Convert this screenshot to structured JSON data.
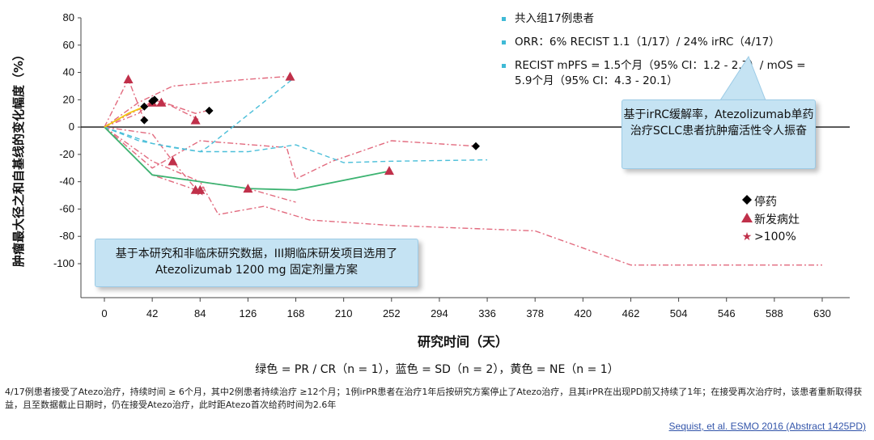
{
  "chart_data": {
    "type": "line",
    "ylabel": "肿瘤最大径之和自基线的变化幅度（%）",
    "xlabel": "研究时间（天）",
    "xlim": [
      0,
      630
    ],
    "ylim": [
      -100,
      80
    ],
    "xticks": [
      0,
      42,
      84,
      126,
      168,
      210,
      252,
      294,
      336,
      378,
      420,
      462,
      504,
      546,
      588,
      630
    ],
    "yticks": [
      80,
      60,
      40,
      20,
      0,
      -20,
      -40,
      -60,
      -80,
      -100
    ],
    "series": [
      {
        "color": "#e26a7e",
        "style": "dashdot",
        "points": [
          [
            0,
            0
          ],
          [
            21,
            35
          ],
          [
            35,
            5
          ]
        ]
      },
      {
        "color": "#e26a7e",
        "style": "dashdot",
        "points": [
          [
            0,
            0
          ],
          [
            30,
            10
          ],
          [
            42,
            20
          ],
          [
            52,
            18
          ],
          [
            80,
            10
          ],
          [
            90,
            12
          ]
        ]
      },
      {
        "color": "#e26a7e",
        "style": "dashdot",
        "points": [
          [
            0,
            0
          ],
          [
            35,
            15
          ],
          [
            55,
            17
          ],
          [
            84,
            5
          ]
        ]
      },
      {
        "color": "#e26a7e",
        "style": "dashdot",
        "points": [
          [
            0,
            0
          ],
          [
            42,
            -5
          ],
          [
            60,
            -25
          ],
          [
            80,
            -45
          ],
          [
            90,
            -44
          ]
        ]
      },
      {
        "color": "#e26a7e",
        "style": "dashdot",
        "points": [
          [
            0,
            0
          ],
          [
            42,
            -35
          ],
          [
            84,
            -47
          ]
        ]
      },
      {
        "color": "#e26a7e",
        "style": "dashdot",
        "points": [
          [
            0,
            0
          ],
          [
            42,
            -30
          ],
          [
            84,
            -10
          ],
          [
            160,
            -15
          ],
          [
            168,
            -38
          ],
          [
            200,
            -25
          ],
          [
            252,
            -10
          ],
          [
            326,
            -14
          ]
        ]
      },
      {
        "color": "#e26a7e",
        "style": "dashdot",
        "points": [
          [
            0,
            0
          ],
          [
            42,
            -35
          ],
          [
            84,
            -40
          ],
          [
            100,
            -64
          ],
          [
            140,
            -58
          ],
          [
            180,
            -68
          ],
          [
            252,
            -72
          ],
          [
            378,
            -76
          ],
          [
            462,
            -101
          ],
          [
            630,
            -101
          ]
        ]
      },
      {
        "color": "#e26a7e",
        "style": "dashdot",
        "points": [
          [
            0,
            0
          ],
          [
            42,
            -25
          ],
          [
            84,
            -40
          ],
          [
            126,
            -45
          ],
          [
            168,
            -55
          ]
        ]
      },
      {
        "color": "#e26a7e",
        "style": "dashdot",
        "points": [
          [
            0,
            0
          ],
          [
            30,
            18
          ],
          [
            60,
            30
          ],
          [
            126,
            35
          ],
          [
            160,
            37
          ]
        ]
      },
      {
        "color": "#4cbfd9",
        "style": "dashed",
        "points": [
          [
            0,
            0
          ],
          [
            30,
            -10
          ],
          [
            60,
            -15
          ],
          [
            84,
            -18
          ],
          [
            90,
            -15
          ],
          [
            165,
            35
          ]
        ]
      },
      {
        "color": "#4cbfd9",
        "style": "dashed",
        "points": [
          [
            0,
            0
          ],
          [
            42,
            -12
          ],
          [
            84,
            -18
          ],
          [
            126,
            -18
          ],
          [
            168,
            -13
          ],
          [
            210,
            -26
          ],
          [
            252,
            -25
          ],
          [
            336,
            -24
          ]
        ]
      },
      {
        "color": "#3cb371",
        "style": "solid",
        "points": [
          [
            0,
            0
          ],
          [
            42,
            -35
          ],
          [
            84,
            -40
          ],
          [
            126,
            -45
          ],
          [
            168,
            -46
          ],
          [
            252,
            -32
          ]
        ]
      },
      {
        "color": "#f2c811",
        "style": "solid",
        "points": [
          [
            0,
            0
          ],
          [
            21,
            10
          ],
          [
            35,
            15
          ]
        ]
      }
    ],
    "markers_diamond": [
      [
        35,
        5
      ],
      [
        35,
        15
      ],
      [
        42,
        19
      ],
      [
        44,
        20
      ],
      [
        92,
        12
      ],
      [
        326,
        -14
      ]
    ],
    "markers_triangle": [
      [
        21,
        35
      ],
      [
        42,
        18
      ],
      [
        50,
        18
      ],
      [
        60,
        -25
      ],
      [
        80,
        5
      ],
      [
        80,
        -46
      ],
      [
        84,
        -46
      ],
      [
        126,
        -45
      ],
      [
        163,
        37
      ],
      [
        250,
        -32
      ]
    ],
    "markers_star": [
      [
        84,
        -47
      ]
    ]
  },
  "legend_top": [
    "共入组17例患者",
    "ORR：6% RECIST 1.1（1/17）/ 24% irRC（4/17）",
    "RECIST mPFS = 1.5个月（95% CI：1.2 - 2.7）/ mOS = 5.9个月（95% CI：4.3 - 20.1）"
  ],
  "callout_right": "基于irRC缓解率，Atezolizumab单药治疗SCLC患者抗肿瘤活性令人振奋",
  "callout_left": "基于本研究和非临床研究数据，III期临床研发项目选用了Atezolizumab 1200 mg 固定剂量方案",
  "legend_markers": {
    "diamond": "停药",
    "triangle": "新发病灶",
    "star": ">100%"
  },
  "color_note": "绿色 = PR / CR（n = 1），蓝色 = SD（n = 2），黄色 = NE（n = 1）",
  "footnote": "4/17例患者接受了Atezo治疗，持续时间 ≥ 6个月，其中2例患者持续治疗 ≥12个月；1例irPR患者在治疗1年后按研究方案停止了Atezo治疗，且其irPR在出现PD前又持续了1年；在接受再次治疗时，该患者重新取得获益，且至数据截止日期时，仍在接受Atezo治疗，此时距Atezo首次给药时间为2.6年",
  "citation": "Sequist, et al. ESMO 2016 (Abstract 1425PD)",
  "colors": {
    "pink": "#e26a7e",
    "blue": "#4cbfd9",
    "green": "#3cb371",
    "yellow": "#f2c811",
    "marker_red": "#c0304a"
  }
}
